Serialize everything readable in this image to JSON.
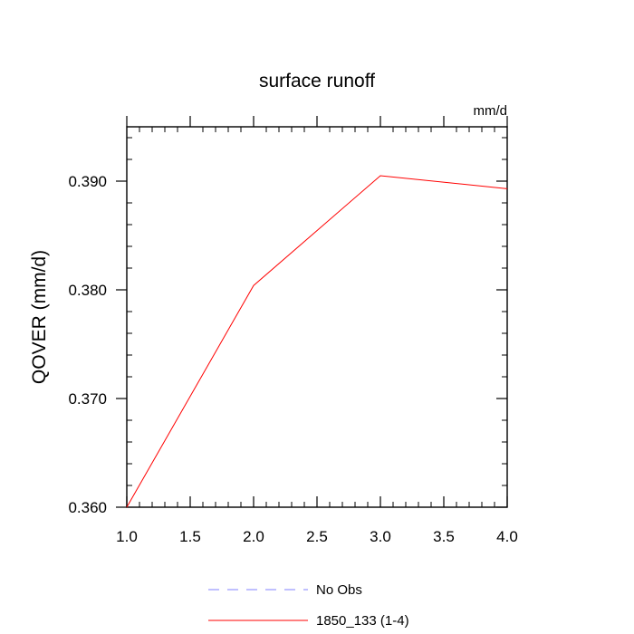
{
  "chart_data": {
    "type": "line",
    "title": "surface runoff",
    "units_label": "mm/d",
    "ylabel": "QOVER  (mm/d)",
    "xlabel": "",
    "xlim": [
      1.0,
      4.0
    ],
    "ylim": [
      0.36,
      0.395
    ],
    "x_ticks": [
      1.0,
      1.5,
      2.0,
      2.5,
      3.0,
      3.5,
      4.0
    ],
    "x_tick_labels": [
      "1.0",
      "1.5",
      "2.0",
      "2.5",
      "3.0",
      "3.5",
      "4.0"
    ],
    "y_ticks": [
      0.36,
      0.37,
      0.38,
      0.39
    ],
    "y_tick_labels": [
      "0.360",
      "0.370",
      "0.380",
      "0.390"
    ],
    "grid": false,
    "legend_position": "bottom-center",
    "series": [
      {
        "name": "No Obs",
        "color": "#8080ff",
        "dash": "dashed",
        "x": [],
        "y": []
      },
      {
        "name": "1850_133 (1-4)",
        "color": "#ff0000",
        "dash": "solid",
        "x": [
          1.0,
          2.0,
          3.0,
          4.0
        ],
        "y": [
          0.36,
          0.3804,
          0.3905,
          0.3893
        ]
      }
    ]
  }
}
